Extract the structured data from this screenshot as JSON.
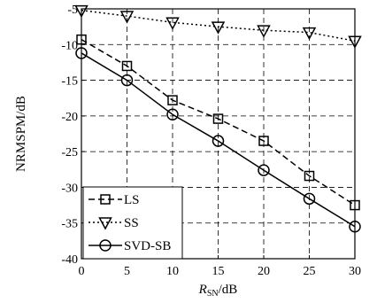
{
  "chart_data": {
    "type": "line",
    "xlabel": "R",
    "xlabel_subscript": "SN",
    "xlabel_unit": "/dB",
    "ylabel": "NRMSPM/dB",
    "xlim": [
      0,
      30
    ],
    "ylim": [
      -40,
      -5
    ],
    "xticks": [
      0,
      5,
      10,
      15,
      20,
      25,
      30
    ],
    "yticks": [
      -40,
      -35,
      -30,
      -25,
      -20,
      -15,
      -10,
      -5
    ],
    "grid": true,
    "legend_position": "bottom-left",
    "x": [
      0,
      5,
      10,
      15,
      20,
      25,
      30
    ],
    "series": [
      {
        "name": "LS",
        "values": [
          -9.3,
          -13.0,
          -17.8,
          -20.4,
          -23.5,
          -28.4,
          -32.5
        ],
        "marker": "square",
        "line": "dashed"
      },
      {
        "name": "SS",
        "values": [
          -5.2,
          -6.0,
          -6.9,
          -7.5,
          -8.0,
          -8.3,
          -9.5
        ],
        "marker": "triangle-down",
        "line": "dotted"
      },
      {
        "name": "SVD-SB",
        "values": [
          -11.2,
          -15.0,
          -19.8,
          -23.5,
          -27.6,
          -31.6,
          -35.5
        ],
        "marker": "circle",
        "line": "solid"
      }
    ]
  }
}
